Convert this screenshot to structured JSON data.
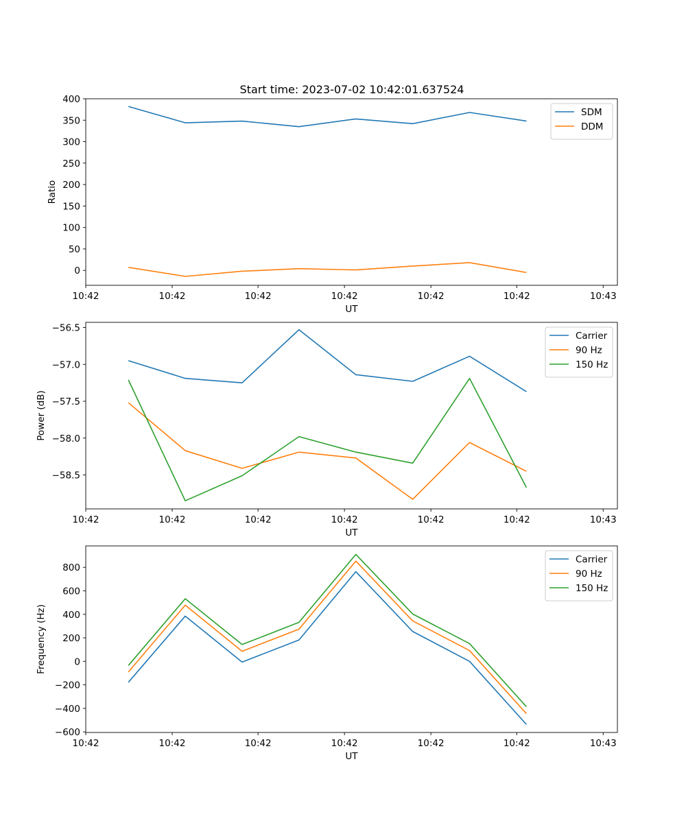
{
  "figure_title": "Start time: 2023-07-02 10:42:01.637524",
  "colors": {
    "c0": "#1f77b4",
    "c1": "#ff7f0e",
    "c2": "#2ca02c"
  },
  "chart_data": [
    {
      "type": "line",
      "title": "Start time: 2023-07-02 10:42:01.637524",
      "xlabel": "UT",
      "ylabel": "Ratio",
      "x": [
        0,
        1,
        2,
        3,
        4,
        5,
        6,
        7
      ],
      "xlim": [
        -0.75,
        8.6
      ],
      "xticks": [
        {
          "v": -0.75,
          "label": "10:42"
        },
        {
          "v": 0.77,
          "label": "10:42"
        },
        {
          "v": 2.28,
          "label": "10:42"
        },
        {
          "v": 3.8,
          "label": "10:42"
        },
        {
          "v": 5.32,
          "label": "10:42"
        },
        {
          "v": 6.83,
          "label": "10:42"
        },
        {
          "v": 8.35,
          "label": "10:43"
        }
      ],
      "ylim": [
        -34.8,
        400
      ],
      "yticks": [
        {
          "v": 0,
          "label": "0"
        },
        {
          "v": 50,
          "label": "50"
        },
        {
          "v": 100,
          "label": "100"
        },
        {
          "v": 150,
          "label": "150"
        },
        {
          "v": 200,
          "label": "200"
        },
        {
          "v": 250,
          "label": "250"
        },
        {
          "v": 300,
          "label": "300"
        },
        {
          "v": 350,
          "label": "350"
        },
        {
          "v": 400,
          "label": "400"
        }
      ],
      "legend": "top-right",
      "series": [
        {
          "name": "SDM",
          "color": "#1f77b4",
          "values": [
            382,
            344,
            348,
            335,
            353,
            342,
            368,
            348
          ]
        },
        {
          "name": "DDM",
          "color": "#ff7f0e",
          "values": [
            7,
            -14,
            -2,
            4,
            1,
            10,
            18,
            -5
          ]
        }
      ]
    },
    {
      "type": "line",
      "title": "",
      "xlabel": "UT",
      "ylabel": "Power (dB)",
      "x": [
        0,
        1,
        2,
        3,
        4,
        5,
        6,
        7
      ],
      "xlim": [
        -0.75,
        8.6
      ],
      "xticks": [
        {
          "v": -0.75,
          "label": "10:42"
        },
        {
          "v": 0.77,
          "label": "10:42"
        },
        {
          "v": 2.28,
          "label": "10:42"
        },
        {
          "v": 3.8,
          "label": "10:42"
        },
        {
          "v": 5.32,
          "label": "10:42"
        },
        {
          "v": 6.83,
          "label": "10:42"
        },
        {
          "v": 8.35,
          "label": "10:43"
        }
      ],
      "ylim": [
        -58.96,
        -56.43
      ],
      "yticks": [
        {
          "v": -58.5,
          "label": "−58.5"
        },
        {
          "v": -58.0,
          "label": "−58.0"
        },
        {
          "v": -57.5,
          "label": "−57.5"
        },
        {
          "v": -57.0,
          "label": "−57.0"
        },
        {
          "v": -56.5,
          "label": "−56.5"
        }
      ],
      "legend": "top-right",
      "series": [
        {
          "name": "Carrier",
          "color": "#1f77b4",
          "values": [
            -56.95,
            -57.19,
            -57.25,
            -56.53,
            -57.14,
            -57.23,
            -56.89,
            -57.37
          ]
        },
        {
          "name": "90 Hz",
          "color": "#ff7f0e",
          "values": [
            -57.52,
            -58.17,
            -58.41,
            -58.19,
            -58.27,
            -58.83,
            -58.06,
            -58.45
          ]
        },
        {
          "name": "150 Hz",
          "color": "#2ca02c",
          "values": [
            -57.21,
            -58.85,
            -58.51,
            -57.98,
            -58.19,
            -58.34,
            -57.19,
            -58.67
          ]
        }
      ]
    },
    {
      "type": "line",
      "title": "",
      "xlabel": "UT",
      "ylabel": "Frequency (Hz)",
      "x": [
        0,
        1,
        2,
        3,
        4,
        5,
        6,
        7
      ],
      "xlim": [
        -0.75,
        8.6
      ],
      "xticks": [
        {
          "v": -0.75,
          "label": "10:42"
        },
        {
          "v": 0.77,
          "label": "10:42"
        },
        {
          "v": 2.28,
          "label": "10:42"
        },
        {
          "v": 3.8,
          "label": "10:42"
        },
        {
          "v": 5.32,
          "label": "10:42"
        },
        {
          "v": 6.83,
          "label": "10:42"
        },
        {
          "v": 8.35,
          "label": "10:43"
        }
      ],
      "ylim": [
        -605,
        982
      ],
      "yticks": [
        {
          "v": -600,
          "label": "−600"
        },
        {
          "v": -400,
          "label": "−400"
        },
        {
          "v": -200,
          "label": "−200"
        },
        {
          "v": 0,
          "label": "0"
        },
        {
          "v": 200,
          "label": "200"
        },
        {
          "v": 400,
          "label": "400"
        },
        {
          "v": 600,
          "label": "600"
        },
        {
          "v": 800,
          "label": "800"
        }
      ],
      "legend": "top-right",
      "series": [
        {
          "name": "Carrier",
          "color": "#1f77b4",
          "values": [
            -178,
            385,
            -6,
            182,
            763,
            254,
            0,
            -537
          ]
        },
        {
          "name": "90 Hz",
          "color": "#ff7f0e",
          "values": [
            -90,
            478,
            86,
            274,
            853,
            344,
            92,
            -445
          ]
        },
        {
          "name": "150 Hz",
          "color": "#2ca02c",
          "values": [
            -35,
            533,
            143,
            332,
            910,
            403,
            151,
            -386
          ]
        }
      ]
    }
  ]
}
